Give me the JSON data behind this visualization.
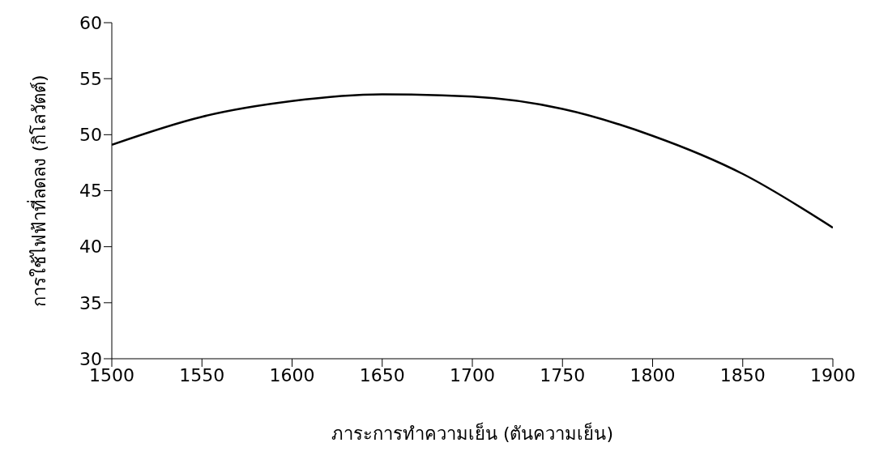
{
  "chart_data": {
    "type": "line",
    "xlabel": "ภาระการทำความเย็น (ตันความเย็น)",
    "ylabel": "การใช้ไฟฟ้าที่ลดลง (กิโลวัตต์)",
    "x": [
      1500,
      1550,
      1600,
      1650,
      1700,
      1750,
      1800,
      1850,
      1900
    ],
    "series": [
      {
        "color": "#000000",
        "values": [
          49.1,
          51.6,
          53.0,
          53.6,
          53.4,
          52.3,
          49.9,
          46.5,
          41.7
        ]
      }
    ],
    "xlim": [
      1500,
      1900
    ],
    "xticks": [
      1500,
      1550,
      1600,
      1650,
      1700,
      1750,
      1800,
      1850,
      1900
    ],
    "ylim": [
      30,
      60
    ],
    "yticks": [
      30,
      35,
      40,
      45,
      50,
      55,
      60
    ],
    "grid": false,
    "legend": false,
    "marker": "none",
    "line_style": "solid"
  }
}
